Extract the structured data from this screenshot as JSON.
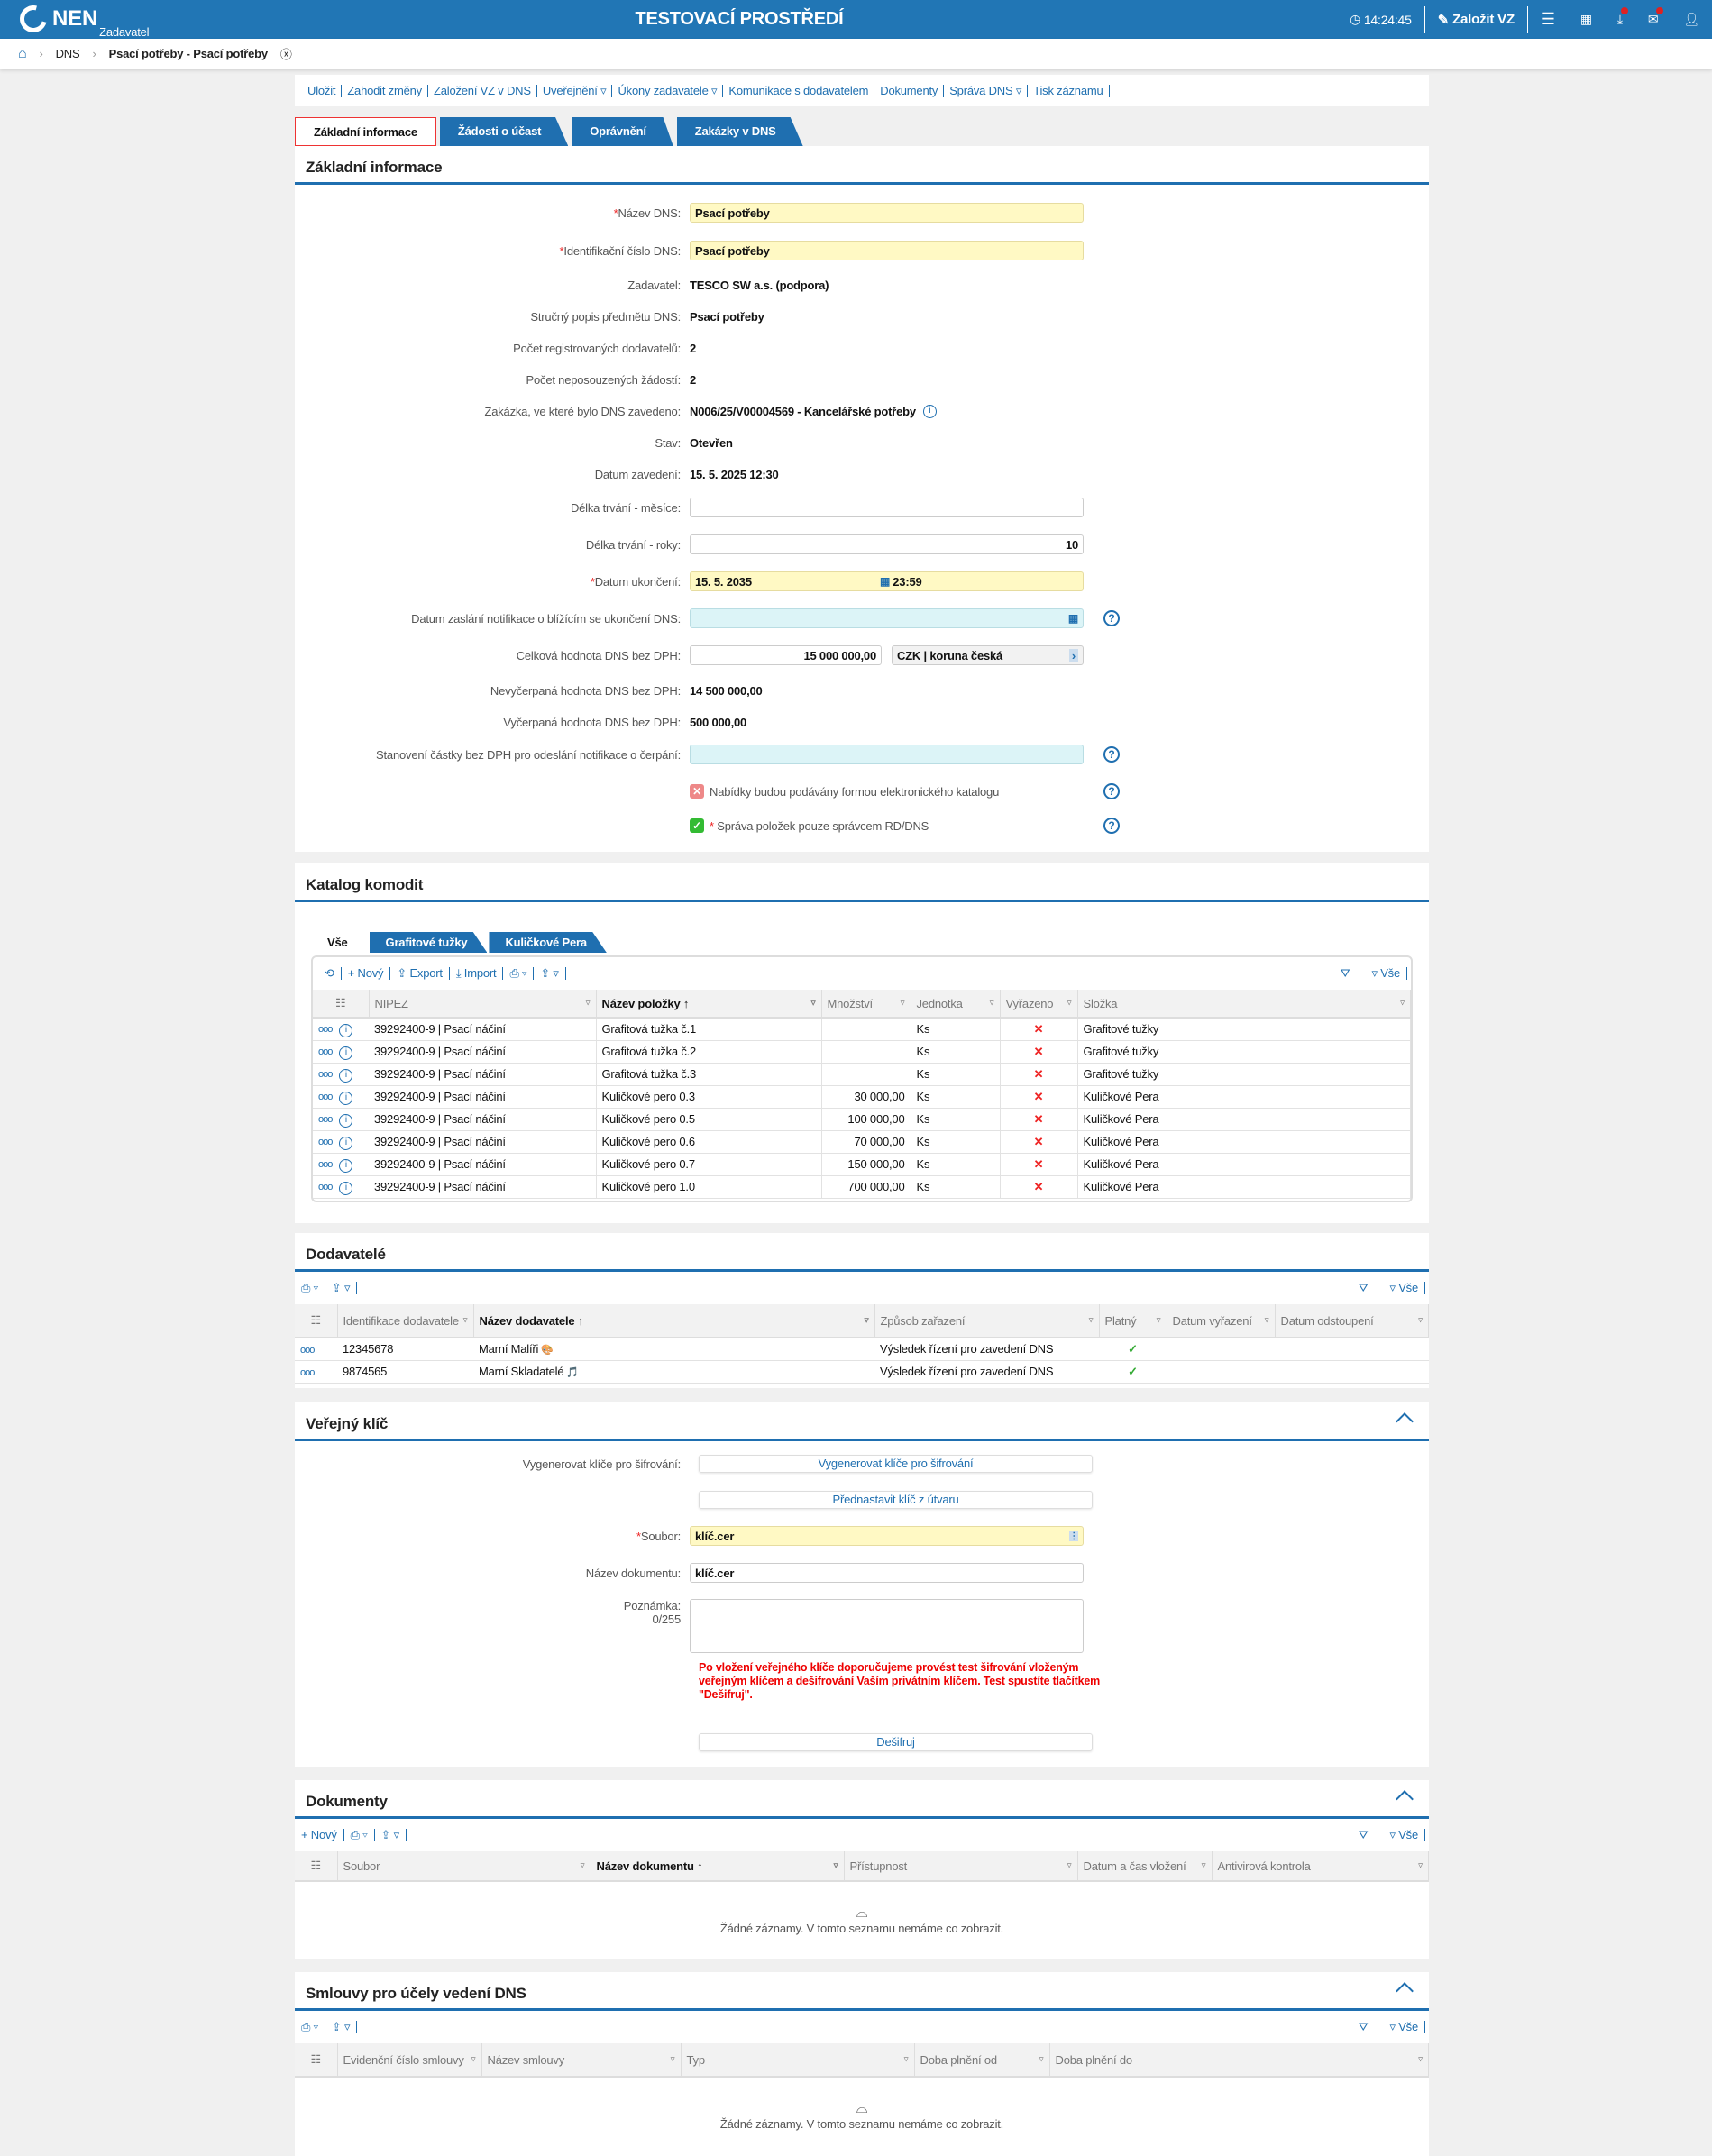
{
  "header": {
    "logo": "NEN",
    "logo_sub": "Zadavatel",
    "environment": "TESTOVACÍ PROSTŘEDÍ",
    "time": "14:24:45",
    "create_vz": "Založit VZ",
    "brand_color": "#2176b5"
  },
  "breadcrumb": {
    "items": [
      "DNS",
      "Psací potřeby - Psací potřeby"
    ]
  },
  "toolbar": [
    "Uložit",
    "Zahodit změny",
    "Založení VZ v DNS",
    "Uveřejnění ▿",
    "Úkony zadavatele ▿",
    "Komunikace s dodavatelem",
    "Dokumenty",
    "Správa DNS ▿",
    "Tisk záznamu"
  ],
  "tabs": [
    "Základní informace",
    "Žádosti o účast",
    "Oprávnění",
    "Zakázky v DNS"
  ],
  "basic": {
    "title": "Základní informace",
    "nazev_label": "Název DNS:",
    "nazev": "Psací potřeby",
    "id_label": "Identifikační číslo DNS:",
    "id": "Psací potřeby",
    "zadavatel_label": "Zadavatel:",
    "zadavatel": "TESCO SW a.s. (podpora)",
    "popis_label": "Stručný popis předmětu DNS:",
    "popis": "Psací potřeby",
    "reg_label": "Počet registrovaných dodavatelů:",
    "reg": "2",
    "nepos_label": "Počet neposouzených žádostí:",
    "nepos": "2",
    "zakazka_label": "Zakázka, ve které bylo DNS zavedeno:",
    "zakazka": "N006/25/V00004569 - Kancelářské potřeby",
    "stav_label": "Stav:",
    "stav": "Otevřen",
    "datum_zav_label": "Datum zavedení:",
    "datum_zav": "15. 5. 2025 12:30",
    "mesice_label": "Délka trvání - měsíce:",
    "mesice": "",
    "roky_label": "Délka trvání - roky:",
    "roky": "10",
    "ukonceni_label": "Datum ukončení:",
    "ukonceni_datum": "15. 5. 2035",
    "ukonceni_cas": "23:59",
    "notif_label": "Datum zaslání notifikace o blížícím se ukončení DNS:",
    "notif": "",
    "celkova_label": "Celková hodnota DNS bez DPH:",
    "celkova": "15 000 000,00",
    "mena": "CZK | koruna česká",
    "nevyc_label": "Nevyčerpaná hodnota DNS bez DPH:",
    "nevyc": "14 500 000,00",
    "vyc_label": "Vyčerpaná hodnota DNS bez DPH:",
    "vyc": "500 000,00",
    "castka_label": "Stanovení částky bez DPH pro odeslání notifikace o čerpání:",
    "castka": "",
    "katalog_cb": "Nabídky budou podávány formou elektronického katalogu",
    "katalog_checked": false,
    "sprava_cb": "Správa položek pouze správcem RD/DNS",
    "sprava_checked": true
  },
  "katalog": {
    "title": "Katalog komodit",
    "subtabs": [
      "Vše",
      "Grafitové tužky",
      "Kuličkové Pera"
    ],
    "toolbar": {
      "novy": "+ Nový",
      "export": "Export",
      "import": "Import",
      "all": "Vše"
    },
    "columns": [
      "NIPEZ",
      "Název položky ↑",
      "Množství",
      "Jednotka",
      "Vyřazeno",
      "Složka"
    ],
    "rows": [
      [
        "39292400-9 | Psací náčiní",
        "Grafitová tužka č.1",
        "",
        "Ks",
        "✕",
        "Grafitové tužky"
      ],
      [
        "39292400-9 | Psací náčiní",
        "Grafitová tužka č.2",
        "",
        "Ks",
        "✕",
        "Grafitové tužky"
      ],
      [
        "39292400-9 | Psací náčiní",
        "Grafitová tužka č.3",
        "",
        "Ks",
        "✕",
        "Grafitové tužky"
      ],
      [
        "39292400-9 | Psací náčiní",
        "Kuličkové pero 0.3",
        "30 000,00",
        "Ks",
        "✕",
        "Kuličkové Pera"
      ],
      [
        "39292400-9 | Psací náčiní",
        "Kuličkové pero 0.5",
        "100 000,00",
        "Ks",
        "✕",
        "Kuličkové Pera"
      ],
      [
        "39292400-9 | Psací náčiní",
        "Kuličkové pero 0.6",
        "70 000,00",
        "Ks",
        "✕",
        "Kuličkové Pera"
      ],
      [
        "39292400-9 | Psací náčiní",
        "Kuličkové pero 0.7",
        "150 000,00",
        "Ks",
        "✕",
        "Kuličkové Pera"
      ],
      [
        "39292400-9 | Psací náčiní",
        "Kuličkové pero 1.0",
        "700 000,00",
        "Ks",
        "✕",
        "Kuličkové Pera"
      ]
    ]
  },
  "dodavatele": {
    "title": "Dodavatelé",
    "all": "Vše",
    "columns": [
      "Identifikace dodavatele",
      "Název dodavatele ↑",
      "Způsob zařazení",
      "Platný",
      "Datum vyřazení",
      "Datum odstoupení"
    ],
    "rows": [
      [
        "12345678",
        "Marní Malíři",
        "Výsledek řízení pro zavedení DNS",
        "✓",
        "",
        ""
      ],
      [
        "9874565",
        "Marní Skladatelé",
        "Výsledek řízení pro zavedení DNS",
        "✓",
        "",
        ""
      ]
    ]
  },
  "klic": {
    "title": "Veřejný klíč",
    "gen_label": "Vygenerovat klíče pro šifrování:",
    "gen_btn": "Vygenerovat klíče pro šifrování",
    "preset_btn": "Přednastavit klíč z útvaru",
    "soubor_label": "Soubor:",
    "soubor": "klíč.cer",
    "nazev_label": "Název dokumentu:",
    "nazev": "klíč.cer",
    "pozn_label": "Poznámka:",
    "pozn_count": "0/255",
    "warning": "Po vložení veřejného klíče doporučujeme provést test šifrování vloženým veřejným klíčem a dešifrování Vaším privátním klíčem. Test spustíte tlačítkem \"Dešifruj\".",
    "desifruj": "Dešifruj"
  },
  "dokumenty": {
    "title": "Dokumenty",
    "novy": "+ Nový",
    "all": "Vše",
    "columns": [
      "Soubor",
      "Název dokumentu ↑",
      "Přístupnost",
      "Datum a čas vložení",
      "Antivirová kontrola"
    ],
    "empty": "Žádné záznamy. V tomto seznamu nemáme co zobrazit."
  },
  "smlouvy": {
    "title": "Smlouvy pro účely vedení DNS",
    "all": "Vše",
    "columns": [
      "Evidenční číslo smlouvy",
      "Název smlouvy",
      "Typ",
      "Doba plnění od",
      "Doba plnění do"
    ],
    "empty": "Žádné záznamy. V tomto seznamu nemáme co zobrazit."
  }
}
